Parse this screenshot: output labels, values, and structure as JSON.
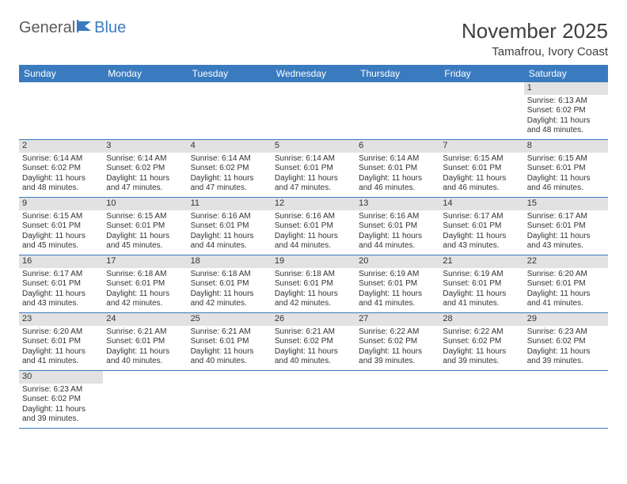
{
  "logo": {
    "text1": "General",
    "text2": "Blue"
  },
  "title": "November 2025",
  "location": "Tamafrou, Ivory Coast",
  "colors": {
    "header_bg": "#3a7bbf",
    "header_text": "#ffffff",
    "daybar_bg": "#e2e2e2",
    "border": "#3a7bbf",
    "text": "#333333",
    "background": "#ffffff"
  },
  "day_headers": [
    "Sunday",
    "Monday",
    "Tuesday",
    "Wednesday",
    "Thursday",
    "Friday",
    "Saturday"
  ],
  "weeks": [
    [
      null,
      null,
      null,
      null,
      null,
      null,
      {
        "n": "1",
        "sunrise": "Sunrise: 6:13 AM",
        "sunset": "Sunset: 6:02 PM",
        "d1": "Daylight: 11 hours",
        "d2": "and 48 minutes."
      }
    ],
    [
      {
        "n": "2",
        "sunrise": "Sunrise: 6:14 AM",
        "sunset": "Sunset: 6:02 PM",
        "d1": "Daylight: 11 hours",
        "d2": "and 48 minutes."
      },
      {
        "n": "3",
        "sunrise": "Sunrise: 6:14 AM",
        "sunset": "Sunset: 6:02 PM",
        "d1": "Daylight: 11 hours",
        "d2": "and 47 minutes."
      },
      {
        "n": "4",
        "sunrise": "Sunrise: 6:14 AM",
        "sunset": "Sunset: 6:02 PM",
        "d1": "Daylight: 11 hours",
        "d2": "and 47 minutes."
      },
      {
        "n": "5",
        "sunrise": "Sunrise: 6:14 AM",
        "sunset": "Sunset: 6:01 PM",
        "d1": "Daylight: 11 hours",
        "d2": "and 47 minutes."
      },
      {
        "n": "6",
        "sunrise": "Sunrise: 6:14 AM",
        "sunset": "Sunset: 6:01 PM",
        "d1": "Daylight: 11 hours",
        "d2": "and 46 minutes."
      },
      {
        "n": "7",
        "sunrise": "Sunrise: 6:15 AM",
        "sunset": "Sunset: 6:01 PM",
        "d1": "Daylight: 11 hours",
        "d2": "and 46 minutes."
      },
      {
        "n": "8",
        "sunrise": "Sunrise: 6:15 AM",
        "sunset": "Sunset: 6:01 PM",
        "d1": "Daylight: 11 hours",
        "d2": "and 46 minutes."
      }
    ],
    [
      {
        "n": "9",
        "sunrise": "Sunrise: 6:15 AM",
        "sunset": "Sunset: 6:01 PM",
        "d1": "Daylight: 11 hours",
        "d2": "and 45 minutes."
      },
      {
        "n": "10",
        "sunrise": "Sunrise: 6:15 AM",
        "sunset": "Sunset: 6:01 PM",
        "d1": "Daylight: 11 hours",
        "d2": "and 45 minutes."
      },
      {
        "n": "11",
        "sunrise": "Sunrise: 6:16 AM",
        "sunset": "Sunset: 6:01 PM",
        "d1": "Daylight: 11 hours",
        "d2": "and 44 minutes."
      },
      {
        "n": "12",
        "sunrise": "Sunrise: 6:16 AM",
        "sunset": "Sunset: 6:01 PM",
        "d1": "Daylight: 11 hours",
        "d2": "and 44 minutes."
      },
      {
        "n": "13",
        "sunrise": "Sunrise: 6:16 AM",
        "sunset": "Sunset: 6:01 PM",
        "d1": "Daylight: 11 hours",
        "d2": "and 44 minutes."
      },
      {
        "n": "14",
        "sunrise": "Sunrise: 6:17 AM",
        "sunset": "Sunset: 6:01 PM",
        "d1": "Daylight: 11 hours",
        "d2": "and 43 minutes."
      },
      {
        "n": "15",
        "sunrise": "Sunrise: 6:17 AM",
        "sunset": "Sunset: 6:01 PM",
        "d1": "Daylight: 11 hours",
        "d2": "and 43 minutes."
      }
    ],
    [
      {
        "n": "16",
        "sunrise": "Sunrise: 6:17 AM",
        "sunset": "Sunset: 6:01 PM",
        "d1": "Daylight: 11 hours",
        "d2": "and 43 minutes."
      },
      {
        "n": "17",
        "sunrise": "Sunrise: 6:18 AM",
        "sunset": "Sunset: 6:01 PM",
        "d1": "Daylight: 11 hours",
        "d2": "and 42 minutes."
      },
      {
        "n": "18",
        "sunrise": "Sunrise: 6:18 AM",
        "sunset": "Sunset: 6:01 PM",
        "d1": "Daylight: 11 hours",
        "d2": "and 42 minutes."
      },
      {
        "n": "19",
        "sunrise": "Sunrise: 6:18 AM",
        "sunset": "Sunset: 6:01 PM",
        "d1": "Daylight: 11 hours",
        "d2": "and 42 minutes."
      },
      {
        "n": "20",
        "sunrise": "Sunrise: 6:19 AM",
        "sunset": "Sunset: 6:01 PM",
        "d1": "Daylight: 11 hours",
        "d2": "and 41 minutes."
      },
      {
        "n": "21",
        "sunrise": "Sunrise: 6:19 AM",
        "sunset": "Sunset: 6:01 PM",
        "d1": "Daylight: 11 hours",
        "d2": "and 41 minutes."
      },
      {
        "n": "22",
        "sunrise": "Sunrise: 6:20 AM",
        "sunset": "Sunset: 6:01 PM",
        "d1": "Daylight: 11 hours",
        "d2": "and 41 minutes."
      }
    ],
    [
      {
        "n": "23",
        "sunrise": "Sunrise: 6:20 AM",
        "sunset": "Sunset: 6:01 PM",
        "d1": "Daylight: 11 hours",
        "d2": "and 41 minutes."
      },
      {
        "n": "24",
        "sunrise": "Sunrise: 6:21 AM",
        "sunset": "Sunset: 6:01 PM",
        "d1": "Daylight: 11 hours",
        "d2": "and 40 minutes."
      },
      {
        "n": "25",
        "sunrise": "Sunrise: 6:21 AM",
        "sunset": "Sunset: 6:01 PM",
        "d1": "Daylight: 11 hours",
        "d2": "and 40 minutes."
      },
      {
        "n": "26",
        "sunrise": "Sunrise: 6:21 AM",
        "sunset": "Sunset: 6:02 PM",
        "d1": "Daylight: 11 hours",
        "d2": "and 40 minutes."
      },
      {
        "n": "27",
        "sunrise": "Sunrise: 6:22 AM",
        "sunset": "Sunset: 6:02 PM",
        "d1": "Daylight: 11 hours",
        "d2": "and 39 minutes."
      },
      {
        "n": "28",
        "sunrise": "Sunrise: 6:22 AM",
        "sunset": "Sunset: 6:02 PM",
        "d1": "Daylight: 11 hours",
        "d2": "and 39 minutes."
      },
      {
        "n": "29",
        "sunrise": "Sunrise: 6:23 AM",
        "sunset": "Sunset: 6:02 PM",
        "d1": "Daylight: 11 hours",
        "d2": "and 39 minutes."
      }
    ],
    [
      {
        "n": "30",
        "sunrise": "Sunrise: 6:23 AM",
        "sunset": "Sunset: 6:02 PM",
        "d1": "Daylight: 11 hours",
        "d2": "and 39 minutes."
      },
      null,
      null,
      null,
      null,
      null,
      null
    ]
  ]
}
